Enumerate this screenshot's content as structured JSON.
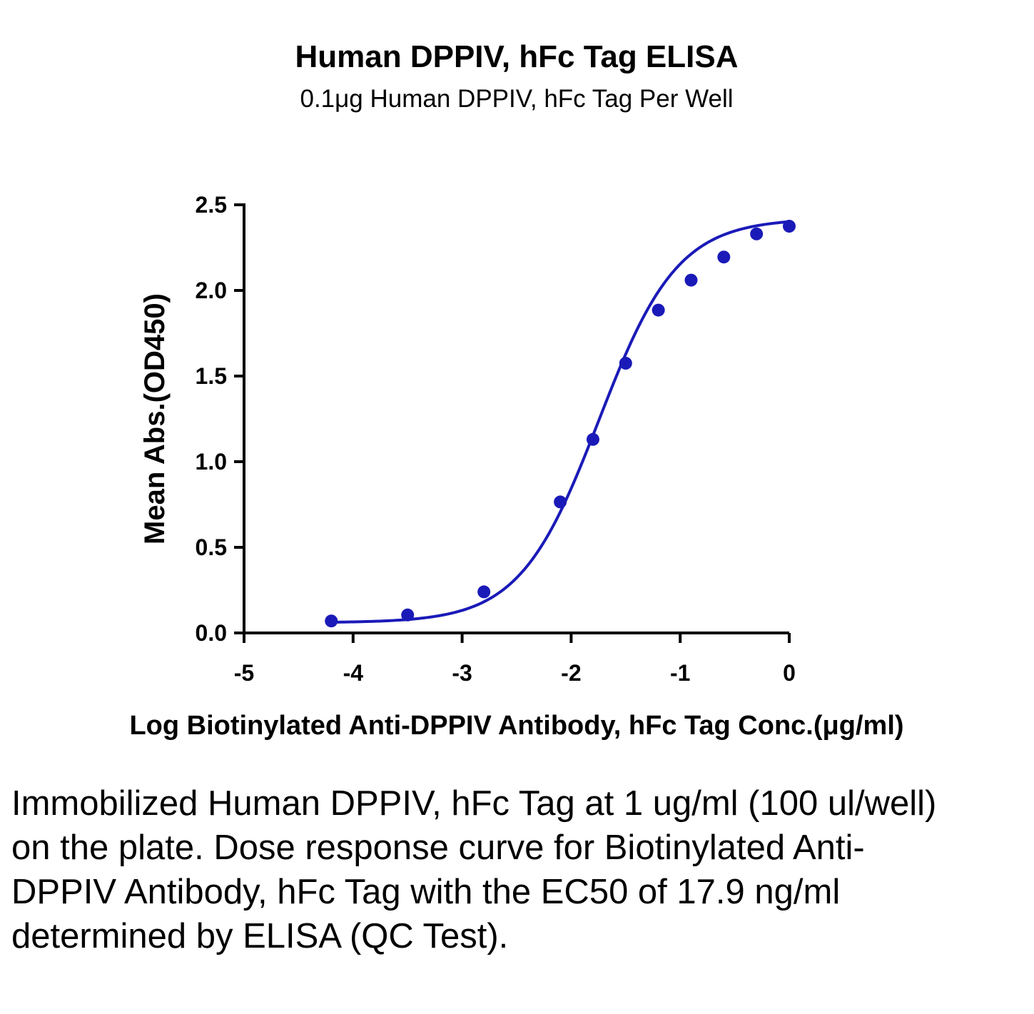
{
  "chart_data": {
    "type": "scatter",
    "title": "Human DPPIV, hFc Tag ELISA",
    "subtitle": "0.1μg Human DPPIV, hFc Tag Per Well",
    "xlabel": "Log Biotinylated Anti-DPPIV Antibody, hFc Tag Conc.(μg/ml)",
    "ylabel": "Mean Abs.(OD450)",
    "xlim": [
      -5,
      0
    ],
    "ylim": [
      0,
      2.5
    ],
    "x_ticks": [
      -5,
      -4,
      -3,
      -2,
      -1,
      0
    ],
    "x_tick_labels": [
      "-5",
      "-4",
      "-3",
      "-2",
      "-1",
      "0"
    ],
    "y_ticks": [
      0,
      0.5,
      1,
      1.5,
      2,
      2.5
    ],
    "y_tick_labels": [
      "0.0",
      "0.5",
      "1.0",
      "1.5",
      "2.0",
      "2.5"
    ],
    "grid": false,
    "color": "#1a1ab8",
    "series": [
      {
        "x": [
          -4.2,
          -3.5,
          -2.8,
          -2.1,
          -1.8,
          -1.5,
          -1.2,
          -0.9,
          -0.6,
          -0.3,
          0
        ],
        "y": [
          0.07,
          0.105,
          0.24,
          0.765,
          1.13,
          1.575,
          1.885,
          2.06,
          2.195,
          2.33,
          2.375
        ]
      }
    ],
    "fit_curve": {
      "model": "4PL",
      "bottom": 0.06,
      "top": 2.42,
      "log_ec50": -1.747,
      "hill": 1.2
    }
  },
  "caption": "Immobilized Human DPPIV, hFc Tag at 1 ug/ml (100 ul/well) on the plate. Dose response curve for Biotinylated Anti-DPPIV Antibody, hFc Tag with the EC50 of 17.9 ng/ml determined by ELISA (QC Test)."
}
